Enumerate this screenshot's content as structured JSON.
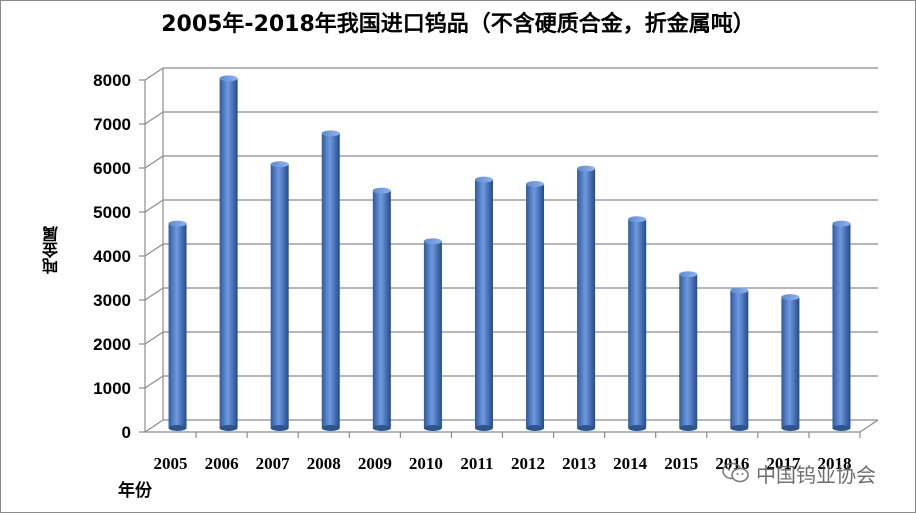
{
  "chart_data": {
    "type": "bar",
    "title": "2005年-2018年我国进口钨品（不含硬质合金，折金属吨）",
    "xlabel": "年份",
    "ylabel": "吨金属",
    "ylim": [
      0,
      8000
    ],
    "yticks": [
      0,
      1000,
      2000,
      3000,
      4000,
      5000,
      6000,
      7000,
      8000
    ],
    "categories": [
      "2005",
      "2006",
      "2007",
      "2008",
      "2009",
      "2010",
      "2011",
      "2012",
      "2013",
      "2014",
      "2015",
      "2016",
      "2017",
      "2018"
    ],
    "values": [
      4600,
      7900,
      5950,
      6650,
      5350,
      4200,
      5600,
      5500,
      5850,
      4700,
      3450,
      3080,
      2930,
      4600
    ],
    "grid": true,
    "bar_color": "#4a7cc9"
  },
  "watermark": {
    "text": "中国钨业协会",
    "icon": "wechat-icon"
  }
}
